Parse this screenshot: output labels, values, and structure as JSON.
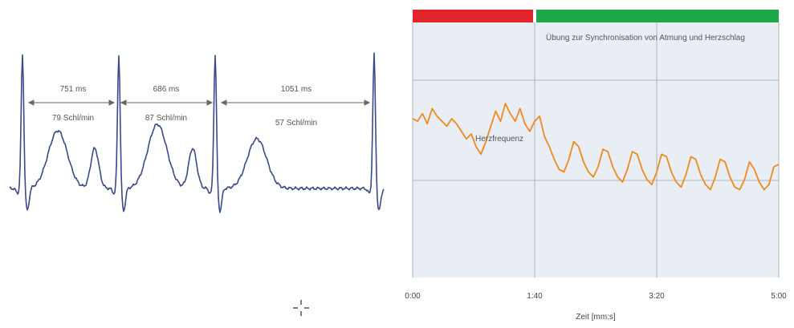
{
  "chart_data": [
    {
      "type": "line",
      "title": "",
      "series": [
        {
          "color": "#3a4a8a"
        }
      ],
      "annotations": [
        {
          "interval": "751 ms",
          "rate": "79 Schl/min"
        },
        {
          "interval": "686 ms",
          "rate": "87 Schl/min"
        },
        {
          "interval": "1051 ms",
          "rate": "57 Schl/min"
        }
      ]
    },
    {
      "type": "line",
      "title": "",
      "xlabel": "Zeit [mm:s]",
      "ylabel": "",
      "x_ticks": [
        "0:00",
        "1:40",
        "3:20",
        "5:00"
      ],
      "x_range_seconds": [
        0,
        300
      ],
      "grid": true,
      "bands": [
        {
          "from": "0:00",
          "to": "1:40",
          "color": "#e3242b"
        },
        {
          "from": "1:40",
          "to": "5:00",
          "color": "#1ea84a"
        }
      ],
      "band_label": "Übung zur Synchronisation von Atmung und Herzschlag",
      "series": [
        {
          "name": "Herzfrequenz",
          "color": "#f08a1c",
          "y_relative": [
            0.62,
            0.6,
            0.66,
            0.58,
            0.7,
            0.64,
            0.6,
            0.56,
            0.62,
            0.58,
            0.52,
            0.46,
            0.5,
            0.4,
            0.34,
            0.44,
            0.56,
            0.68,
            0.6,
            0.74,
            0.66,
            0.6,
            0.7,
            0.58,
            0.52,
            0.6,
            0.64,
            0.48,
            0.4,
            0.3,
            0.22,
            0.2,
            0.3,
            0.44,
            0.4,
            0.28,
            0.2,
            0.16,
            0.24,
            0.38,
            0.36,
            0.24,
            0.16,
            0.12,
            0.22,
            0.36,
            0.34,
            0.22,
            0.14,
            0.1,
            0.2,
            0.34,
            0.32,
            0.2,
            0.12,
            0.08,
            0.18,
            0.32,
            0.3,
            0.18,
            0.1,
            0.06,
            0.16,
            0.3,
            0.28,
            0.16,
            0.08,
            0.06,
            0.14,
            0.28,
            0.22,
            0.12,
            0.06,
            0.1,
            0.24,
            0.26
          ]
        }
      ]
    }
  ]
}
